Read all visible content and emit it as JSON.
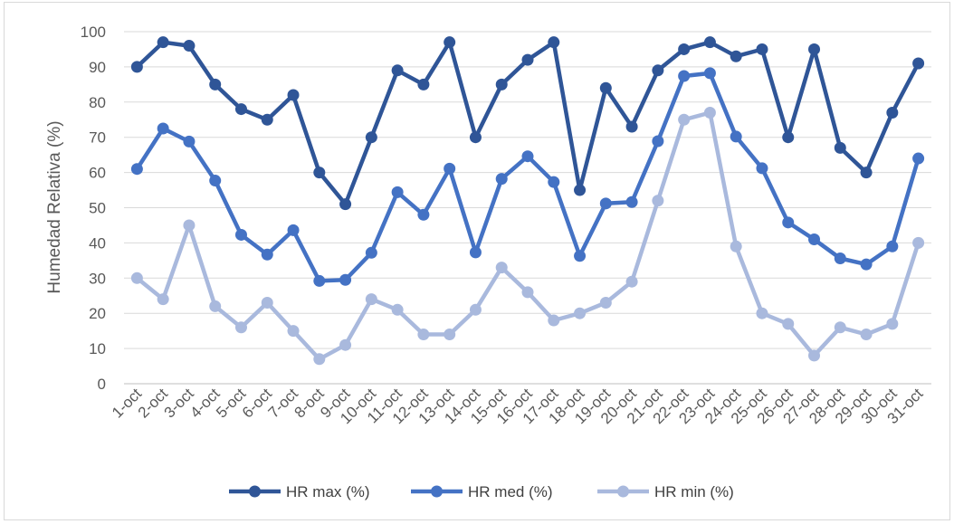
{
  "chart_data": {
    "type": "line",
    "title": "",
    "xlabel": "",
    "ylabel": "Humedad Relativa (%)",
    "ylim": [
      0,
      100
    ],
    "yticks": [
      0,
      10,
      20,
      30,
      40,
      50,
      60,
      70,
      80,
      90,
      100
    ],
    "grid": true,
    "legend_position": "bottom",
    "categories": [
      "1-oct",
      "2-oct",
      "3-oct",
      "4-oct",
      "5-oct",
      "6-oct",
      "7-oct",
      "8-oct",
      "9-oct",
      "10-oct",
      "11-oct",
      "12-oct",
      "13-oct",
      "14-oct",
      "15-oct",
      "16-oct",
      "17-oct",
      "18-oct",
      "19-oct",
      "20-oct",
      "21-oct",
      "22-oct",
      "23-oct",
      "24-oct",
      "25-oct",
      "26-oct",
      "27-oct",
      "28-oct",
      "29-oct",
      "30-oct",
      "31-oct"
    ],
    "series": [
      {
        "name": "HR max (%)",
        "color": "#2f5597",
        "values": [
          90,
          97,
          96,
          85,
          78,
          75,
          82,
          60,
          51,
          70,
          89,
          85,
          97,
          70,
          85,
          92,
          97,
          55,
          84,
          73,
          89,
          95,
          97,
          93,
          95,
          70,
          95,
          67,
          60,
          77,
          91
        ]
      },
      {
        "name": "HR med (%)",
        "color": "#4472c4",
        "values": [
          61,
          72.5,
          68.8,
          57.7,
          42.3,
          36.7,
          43.6,
          29.2,
          29.5,
          37.2,
          54.4,
          48,
          61.1,
          37.3,
          58.2,
          64.6,
          57.3,
          36.3,
          51.2,
          51.6,
          68.9,
          87.4,
          88.2,
          70.2,
          61.2,
          45.8,
          41,
          35.6,
          33.9,
          39,
          64
        ]
      },
      {
        "name": "HR min (%)",
        "color": "#a9b9dd",
        "values": [
          30,
          24,
          45,
          22,
          16,
          23,
          15,
          7,
          11,
          24,
          21,
          14,
          14,
          21,
          33,
          26,
          18,
          20,
          23,
          29,
          52,
          75,
          77,
          39,
          20,
          17,
          8,
          16,
          14,
          17,
          40
        ]
      }
    ]
  }
}
